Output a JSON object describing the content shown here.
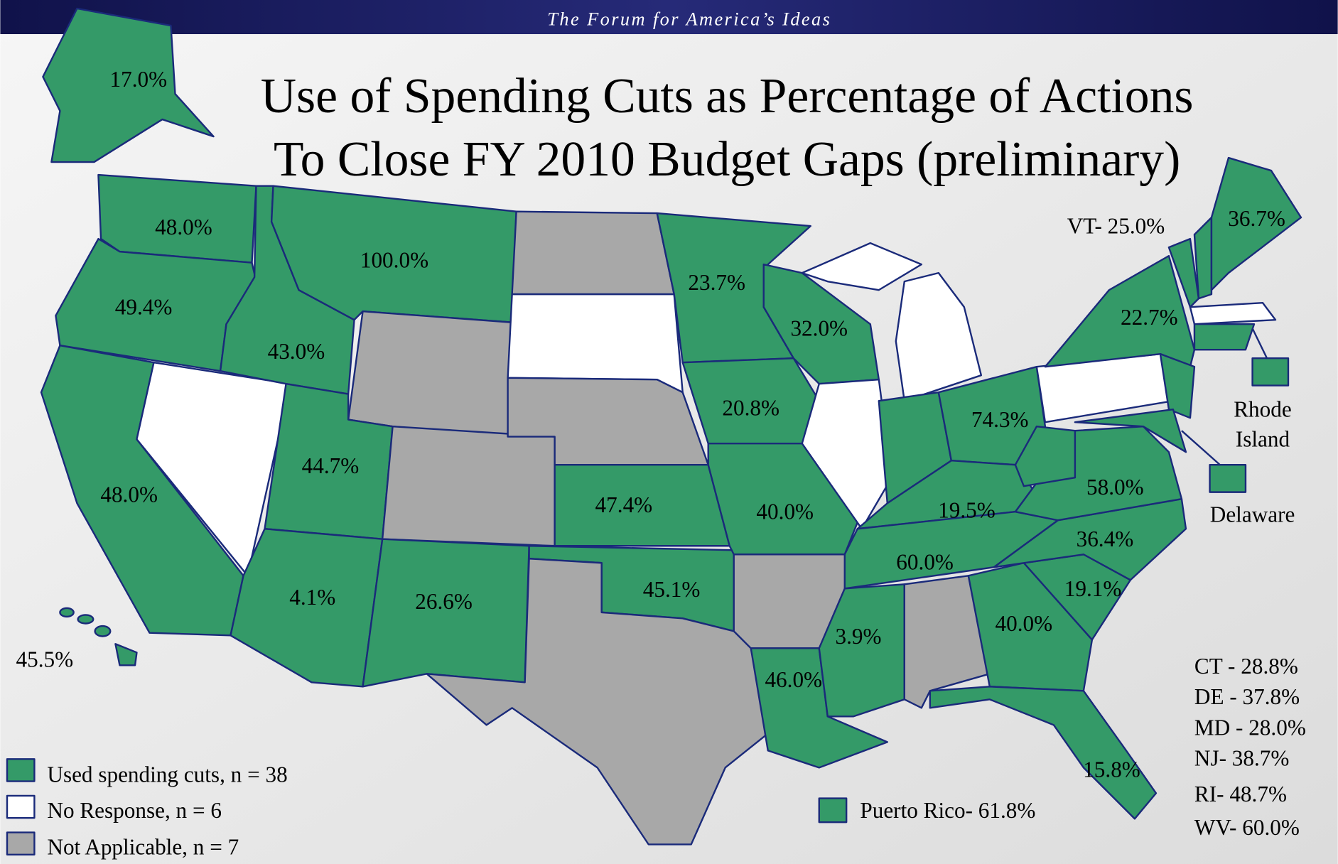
{
  "header": {
    "tagline": "The Forum for America’s Ideas"
  },
  "title": [
    "Use of Spending Cuts as Percentage of Actions",
    "To Close FY 2010 Budget Gaps (preliminary)"
  ],
  "state_labels": [
    "17.0%",
    "48.0%",
    "100.0%",
    "49.4%",
    "43.0%",
    "23.7%",
    "32.0%",
    "22.7%",
    "VT- 25.0%",
    "36.7%",
    "20.8%",
    "74.3%",
    "44.7%",
    "48.0%",
    "47.4%",
    "40.0%",
    "19.5%",
    "58.0%",
    "36.4%",
    "60.0%",
    "45.1%",
    "19.1%",
    "4.1%",
    "26.6%",
    "40.0%",
    "3.9%",
    "45.5%",
    "46.0%",
    "15.8%"
  ],
  "callouts": [
    [
      "Rhode",
      "Island"
    ],
    "Delaware"
  ],
  "notes": [
    "CT - 28.8%",
    "DE - 37.8%",
    "MD - 28.0%",
    "NJ- 38.7%",
    "RI- 48.7%",
    "WV- 60.0%"
  ],
  "legend": [
    "Used spending cuts, n = 38",
    "No Response, n = 6",
    "Not Applicable, n = 7"
  ],
  "territory": "Puerto Rico- 61.8%"
}
